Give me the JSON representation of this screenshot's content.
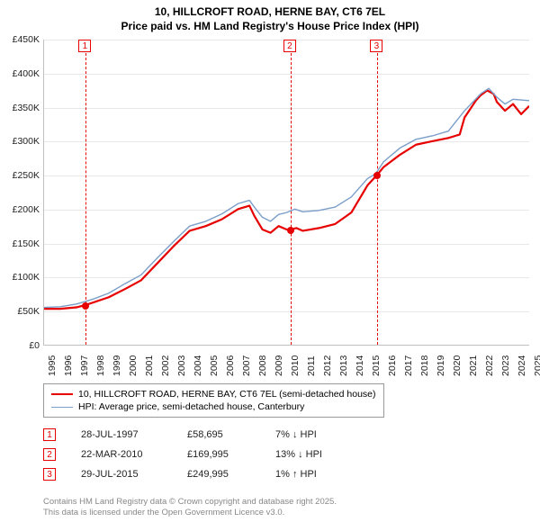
{
  "title": "10, HILLCROFT ROAD, HERNE BAY, CT6 7EL",
  "subtitle": "Price paid vs. HM Land Registry's House Price Index (HPI)",
  "chart": {
    "type": "line",
    "background_color": "#ffffff",
    "grid_color": "#e8e8e8",
    "axis_color": "#c0c0c0",
    "label_fontsize": 10.5,
    "ylim": [
      0,
      450000
    ],
    "ytick_step": 50000,
    "yticks": [
      "£0",
      "£50K",
      "£100K",
      "£150K",
      "£200K",
      "£250K",
      "£300K",
      "£350K",
      "£400K",
      "£450K"
    ],
    "xlim": [
      1995,
      2025
    ],
    "xticks": [
      "1995",
      "1996",
      "1997",
      "1998",
      "1999",
      "2000",
      "2001",
      "2002",
      "2003",
      "2004",
      "2005",
      "2006",
      "2007",
      "2008",
      "2009",
      "2010",
      "2011",
      "2012",
      "2013",
      "2014",
      "2015",
      "2016",
      "2017",
      "2018",
      "2019",
      "2020",
      "2021",
      "2022",
      "2023",
      "2024",
      "2025"
    ],
    "series": [
      {
        "name": "property",
        "color": "#e60000",
        "width": 2.2,
        "points": [
          [
            1995,
            53000
          ],
          [
            1996,
            53000
          ],
          [
            1997,
            55000
          ],
          [
            1997.58,
            58695
          ],
          [
            1998,
            62000
          ],
          [
            1999,
            70000
          ],
          [
            2000,
            82000
          ],
          [
            2001,
            95000
          ],
          [
            2002,
            120000
          ],
          [
            2003,
            145000
          ],
          [
            2004,
            168000
          ],
          [
            2005,
            175000
          ],
          [
            2006,
            185000
          ],
          [
            2007,
            200000
          ],
          [
            2007.7,
            205000
          ],
          [
            2008,
            190000
          ],
          [
            2008.5,
            170000
          ],
          [
            2009,
            165000
          ],
          [
            2009.5,
            175000
          ],
          [
            2010,
            170000
          ],
          [
            2010.22,
            169995
          ],
          [
            2010.6,
            172000
          ],
          [
            2011,
            168000
          ],
          [
            2012,
            172000
          ],
          [
            2013,
            178000
          ],
          [
            2014,
            195000
          ],
          [
            2014.5,
            215000
          ],
          [
            2015,
            235000
          ],
          [
            2015.58,
            249995
          ],
          [
            2016,
            262000
          ],
          [
            2017,
            280000
          ],
          [
            2018,
            295000
          ],
          [
            2019,
            300000
          ],
          [
            2020,
            305000
          ],
          [
            2020.7,
            310000
          ],
          [
            2021,
            335000
          ],
          [
            2021.7,
            360000
          ],
          [
            2022,
            368000
          ],
          [
            2022.4,
            375000
          ],
          [
            2022.8,
            370000
          ],
          [
            2023,
            358000
          ],
          [
            2023.5,
            345000
          ],
          [
            2024,
            355000
          ],
          [
            2024.5,
            340000
          ],
          [
            2025,
            352000
          ]
        ]
      },
      {
        "name": "hpi",
        "color": "#7a9ec9",
        "width": 1.4,
        "points": [
          [
            1995,
            55000
          ],
          [
            1996,
            56000
          ],
          [
            1997,
            60000
          ],
          [
            1998,
            67000
          ],
          [
            1999,
            76000
          ],
          [
            2000,
            90000
          ],
          [
            2001,
            103000
          ],
          [
            2002,
            128000
          ],
          [
            2003,
            152000
          ],
          [
            2004,
            175000
          ],
          [
            2005,
            182000
          ],
          [
            2006,
            193000
          ],
          [
            2007,
            208000
          ],
          [
            2007.7,
            213000
          ],
          [
            2008,
            203000
          ],
          [
            2008.5,
            188000
          ],
          [
            2009,
            182000
          ],
          [
            2009.5,
            192000
          ],
          [
            2010,
            195000
          ],
          [
            2010.5,
            200000
          ],
          [
            2011,
            196000
          ],
          [
            2012,
            198000
          ],
          [
            2013,
            203000
          ],
          [
            2014,
            218000
          ],
          [
            2015,
            245000
          ],
          [
            2015.5,
            252000
          ],
          [
            2016,
            270000
          ],
          [
            2017,
            290000
          ],
          [
            2018,
            303000
          ],
          [
            2019,
            308000
          ],
          [
            2020,
            315000
          ],
          [
            2021,
            345000
          ],
          [
            2022,
            370000
          ],
          [
            2022.5,
            378000
          ],
          [
            2023,
            365000
          ],
          [
            2023.5,
            355000
          ],
          [
            2024,
            362000
          ],
          [
            2025,
            360000
          ]
        ]
      }
    ],
    "markers": [
      {
        "n": "1",
        "x": 1997.58,
        "y": 58695
      },
      {
        "n": "2",
        "x": 2010.22,
        "y": 169995
      },
      {
        "n": "3",
        "x": 2015.58,
        "y": 249995
      }
    ]
  },
  "legend": {
    "items": [
      {
        "color": "#e60000",
        "width": 2.2,
        "label": "10, HILLCROFT ROAD, HERNE BAY, CT6 7EL (semi-detached house)"
      },
      {
        "color": "#7a9ec9",
        "width": 1.4,
        "label": "HPI: Average price, semi-detached house, Canterbury"
      }
    ]
  },
  "transactions": [
    {
      "n": "1",
      "date": "28-JUL-1997",
      "price": "£58,695",
      "delta": "7% ↓ HPI"
    },
    {
      "n": "2",
      "date": "22-MAR-2010",
      "price": "£169,995",
      "delta": "13% ↓ HPI"
    },
    {
      "n": "3",
      "date": "29-JUL-2015",
      "price": "£249,995",
      "delta": "1% ↑ HPI"
    }
  ],
  "credits": {
    "line1": "Contains HM Land Registry data © Crown copyright and database right 2025.",
    "line2": "This data is licensed under the Open Government Licence v3.0."
  }
}
